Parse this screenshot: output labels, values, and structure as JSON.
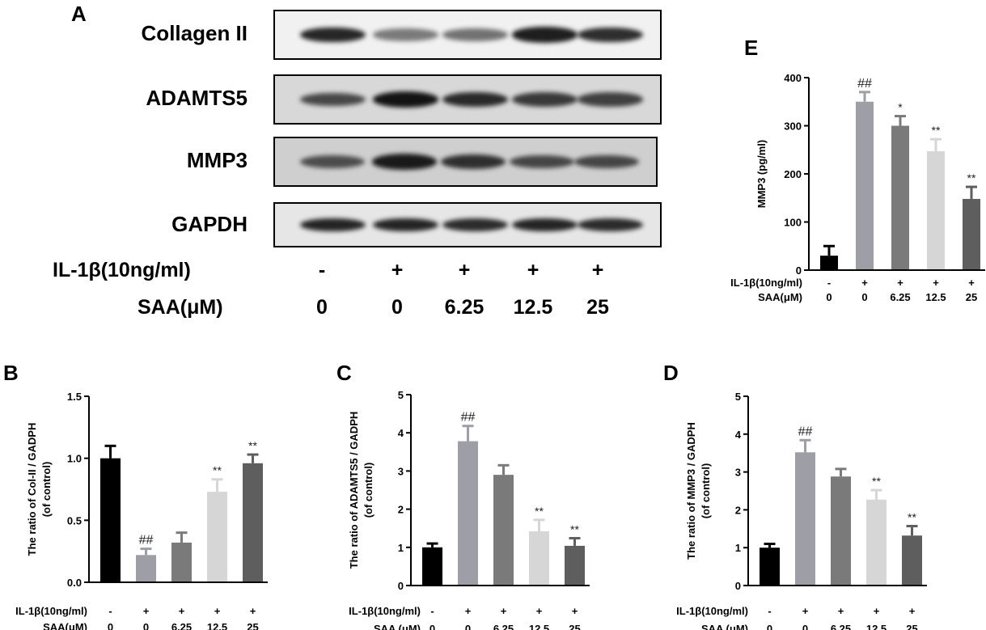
{
  "panel_labels": {
    "a": "A",
    "b": "B",
    "c": "C",
    "d": "D",
    "e": "E"
  },
  "blot": {
    "rows": [
      {
        "label": "Collagen II",
        "intensity": [
          0.85,
          0.35,
          0.4,
          0.9,
          0.8
        ],
        "bg": "#f1f1f1"
      },
      {
        "label": "ADAMTS5",
        "intensity": [
          0.6,
          0.95,
          0.8,
          0.7,
          0.65
        ],
        "bg": "#d8d8d8"
      },
      {
        "label": "MMP3",
        "intensity": [
          0.55,
          0.9,
          0.75,
          0.6,
          0.6
        ],
        "bg": "#cfcfcf"
      },
      {
        "label": "GAPDH",
        "intensity": [
          0.85,
          0.85,
          0.8,
          0.85,
          0.8
        ],
        "bg": "#e6e6e6"
      }
    ],
    "il1b_label": "IL-1β(10ng/ml)",
    "saa_label": "SAA(μM)",
    "il1b_values": [
      "-",
      "+",
      "+",
      "+",
      "+"
    ],
    "saa_values": [
      "0",
      "0",
      "6.25",
      "12.5",
      "25"
    ]
  },
  "chart_data": [
    {
      "id": "B",
      "type": "bar",
      "ylabel": "The ratio of  Col-II / GADPH\n(of control)",
      "ylim": [
        0,
        1.5
      ],
      "yticks": [
        "0.0",
        "0.5",
        "1.0",
        "1.5"
      ],
      "values": [
        1.0,
        0.22,
        0.32,
        0.73,
        0.96
      ],
      "errors": [
        0.1,
        0.05,
        0.08,
        0.1,
        0.07
      ],
      "annotations": [
        "",
        "##",
        "",
        "**",
        "**"
      ],
      "colors": [
        "#000000",
        "#9e9ea6",
        "#7a7a7a",
        "#d6d6d6",
        "#5e5e5e"
      ],
      "row1_label": "IL-1β(10ng/ml)",
      "row1": [
        "-",
        "+",
        "+",
        "+",
        "+"
      ],
      "row2_label": "SAA(μM)",
      "row2": [
        "0",
        "0",
        "6.25",
        "12.5",
        "25"
      ]
    },
    {
      "id": "C",
      "type": "bar",
      "ylabel": "The ratio of  ADAMTS5 / GADPH\n(of control)",
      "ylim": [
        0,
        5
      ],
      "yticks": [
        "0",
        "1",
        "2",
        "3",
        "4",
        "5"
      ],
      "values": [
        1.0,
        3.78,
        2.9,
        1.42,
        1.04
      ],
      "errors": [
        0.1,
        0.4,
        0.25,
        0.3,
        0.2
      ],
      "annotations": [
        "",
        "##",
        "",
        "**",
        "**"
      ],
      "colors": [
        "#000000",
        "#9e9ea6",
        "#7a7a7a",
        "#d6d6d6",
        "#5e5e5e"
      ],
      "row1_label": "IL-1β(10ng/ml)",
      "row1": [
        "-",
        "+",
        "+",
        "+",
        "+"
      ],
      "row2_label": "SAA (μM)",
      "row2": [
        "0",
        "0",
        "6.25",
        "12.5",
        "25"
      ]
    },
    {
      "id": "D",
      "type": "bar",
      "ylabel": "The ratio of  MMP3 / GADPH\n(of control)",
      "ylim": [
        0,
        5
      ],
      "yticks": [
        "0",
        "1",
        "2",
        "3",
        "4",
        "5"
      ],
      "values": [
        1.0,
        3.52,
        2.88,
        2.27,
        1.32
      ],
      "errors": [
        0.1,
        0.32,
        0.2,
        0.25,
        0.25
      ],
      "annotations": [
        "",
        "##",
        "",
        "**",
        "**"
      ],
      "colors": [
        "#000000",
        "#9e9ea6",
        "#7a7a7a",
        "#d6d6d6",
        "#5e5e5e"
      ],
      "row1_label": "IL-1β(10ng/ml)",
      "row1": [
        "-",
        "+",
        "+",
        "+",
        "+"
      ],
      "row2_label": "SAA (μM)",
      "row2": [
        "0",
        "0",
        "6.25",
        "12.5",
        "25"
      ]
    },
    {
      "id": "E",
      "type": "bar",
      "ylabel": "MMP3 (pg/ml)",
      "ylim": [
        0,
        400
      ],
      "yticks": [
        "0",
        "100",
        "200",
        "300",
        "400"
      ],
      "values": [
        30,
        350,
        300,
        247,
        148
      ],
      "errors": [
        20,
        20,
        20,
        25,
        25
      ],
      "annotations": [
        "",
        "##",
        "*",
        "**",
        "**"
      ],
      "colors": [
        "#000000",
        "#9e9ea6",
        "#7a7a7a",
        "#d6d6d6",
        "#5e5e5e"
      ],
      "row1_label": "IL-1β(10ng/ml)",
      "row1": [
        "-",
        "+",
        "+",
        "+",
        "+"
      ],
      "row2_label": "SAA(μM)",
      "row2": [
        "0",
        "0",
        "6.25",
        "12.5",
        "25"
      ]
    }
  ]
}
